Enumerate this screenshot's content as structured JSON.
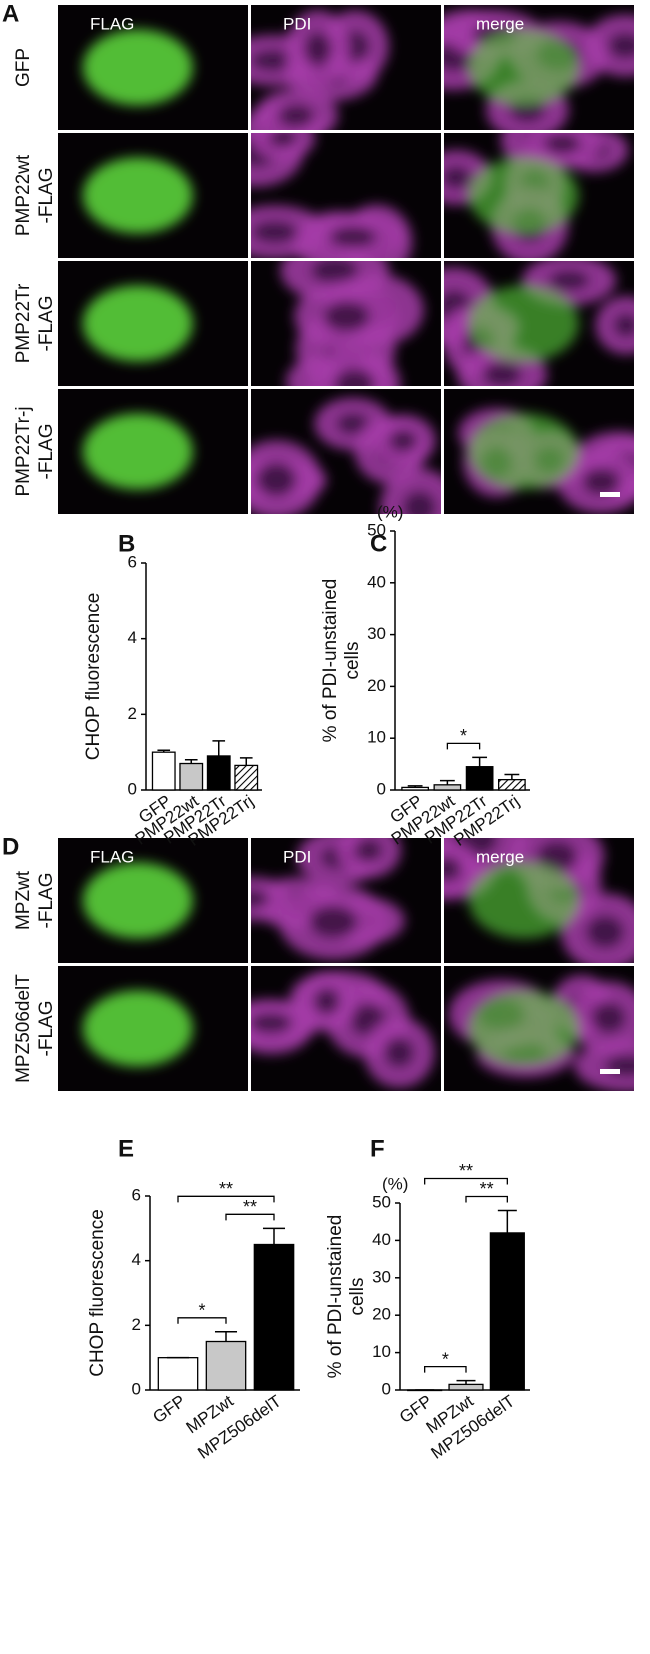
{
  "figure": {
    "A": {
      "letter": "A",
      "columns": [
        "FLAG",
        "PDI",
        "merge"
      ],
      "rows": [
        [
          "GFP"
        ],
        [
          "PMP22wt",
          "-FLAG"
        ],
        [
          "PMP22Tr",
          "-FLAG"
        ],
        [
          "PMP22Tr-j",
          "-FLAG"
        ]
      ]
    },
    "D": {
      "letter": "D",
      "columns": [
        "FLAG",
        "PDI",
        "merge"
      ],
      "rows": [
        [
          "MPZwt",
          "-FLAG"
        ],
        [
          "MPZ506delT",
          "-FLAG"
        ]
      ]
    }
  },
  "chart_data": [
    {
      "type": "bar",
      "panel": "B",
      "ylabel": [
        "CHOP    fluorescence"
      ],
      "categories": [
        "GFP",
        "PMP22wt",
        "PMP22Tr",
        "PMP22Trj"
      ],
      "values": [
        1,
        0.7,
        0.9,
        0.65
      ],
      "errors": [
        0.05,
        0.1,
        0.4,
        0.2
      ],
      "colors": [
        "#ffffff",
        "#c8c8c8",
        "#000000",
        "#ffffff"
      ],
      "hatch": [
        false,
        false,
        false,
        true
      ],
      "ylim": [
        0,
        6
      ],
      "yticks": [
        0,
        2,
        4,
        6
      ]
    },
    {
      "type": "bar",
      "panel": "C",
      "unit": "(%)",
      "ylabel": [
        "% of PDI-unstained",
        "cells"
      ],
      "categories": [
        "GFP",
        "PMP22wt",
        "PMP22Tr",
        "PMP22Trj"
      ],
      "values": [
        0.5,
        1,
        4.5,
        2
      ],
      "errors": [
        0.3,
        0.8,
        1.8,
        1
      ],
      "colors": [
        "#ffffff",
        "#c8c8c8",
        "#000000",
        "#ffffff"
      ],
      "hatch": [
        false,
        false,
        false,
        true
      ],
      "ylim": [
        0,
        50
      ],
      "yticks": [
        0,
        10,
        20,
        30,
        40,
        50
      ],
      "significance": [
        {
          "between": [
            1,
            2
          ],
          "label": "*"
        }
      ]
    },
    {
      "type": "bar",
      "panel": "E",
      "ylabel": [
        "CHOP fluorescence"
      ],
      "categories": [
        "GFP",
        "MPZwt",
        "MPZ506delT"
      ],
      "values": [
        1,
        1.5,
        4.5
      ],
      "errors": [
        0,
        0.3,
        0.5
      ],
      "colors": [
        "#ffffff",
        "#c8c8c8",
        "#000000"
      ],
      "hatch": [
        false,
        false,
        false
      ],
      "ylim": [
        0,
        6
      ],
      "yticks": [
        0,
        2,
        4,
        6
      ],
      "significance": [
        {
          "between": [
            0,
            1
          ],
          "label": "*"
        },
        {
          "between": [
            1,
            2
          ],
          "label": "**"
        },
        {
          "between": [
            0,
            2
          ],
          "label": "**"
        }
      ]
    },
    {
      "type": "bar",
      "panel": "F",
      "unit": "(%)",
      "ylabel": [
        "% of PDI-unstained",
        "cells"
      ],
      "categories": [
        "GFP",
        "MPZwt",
        "MPZ506delT"
      ],
      "values": [
        0,
        1.5,
        42
      ],
      "errors": [
        0,
        1,
        6
      ],
      "colors": [
        "#ffffff",
        "#c8c8c8",
        "#000000"
      ],
      "hatch": [
        false,
        false,
        false
      ],
      "ylim": [
        0,
        50
      ],
      "yticks": [
        0,
        10,
        20,
        30,
        40,
        50
      ],
      "significance": [
        {
          "between": [
            0,
            1
          ],
          "label": "*"
        },
        {
          "between": [
            1,
            2
          ],
          "label": "**"
        },
        {
          "between": [
            0,
            2
          ],
          "label": "**"
        }
      ]
    }
  ]
}
